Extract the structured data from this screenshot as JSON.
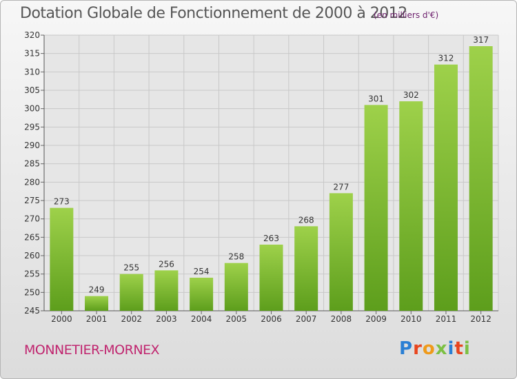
{
  "header": {
    "title": "Dotation Globale de Fonctionnement de 2000 à 2012",
    "unit": "(en milliers d'€)"
  },
  "footer": {
    "town": "MONNETIER-MORNEX",
    "logo": "Proxiti",
    "logo_colors": [
      "#2a7fd4",
      "#e8451e",
      "#ef9a1a",
      "#7cc043",
      "#2a7fd4",
      "#e8451e",
      "#7cc043"
    ]
  },
  "chart_data": {
    "type": "bar",
    "categories": [
      "2000",
      "2001",
      "2002",
      "2003",
      "2004",
      "2005",
      "2006",
      "2007",
      "2008",
      "2009",
      "2010",
      "2011",
      "2012"
    ],
    "values": [
      273,
      249,
      255,
      256,
      254,
      258,
      263,
      268,
      277,
      301,
      302,
      312,
      317
    ],
    "ylim": [
      245,
      320
    ],
    "ytick_step": 5,
    "grid": true,
    "bar_color_top": "#9ed14a",
    "bar_color_bottom": "#5d9e1c"
  }
}
